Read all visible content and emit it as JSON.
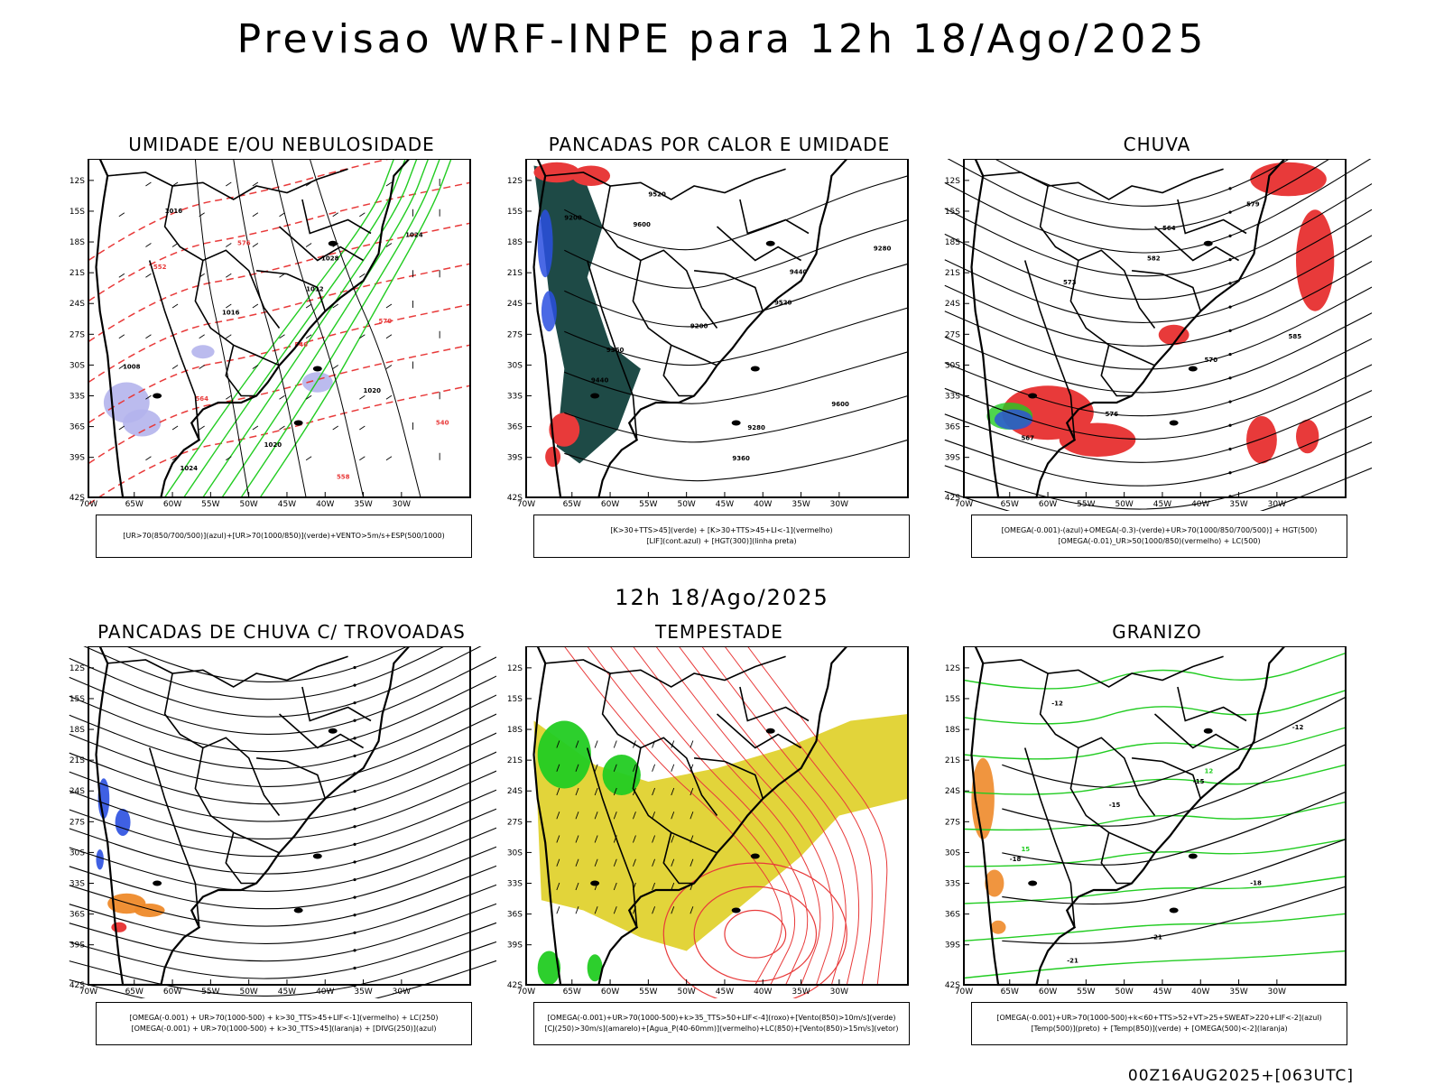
{
  "header": {
    "title": "Previsao WRF-INPE  para 12h 18/Ago/2025",
    "subtitle": "12h 18/Ago/2025",
    "run_info": "00Z16AUG2025+[063UTC]"
  },
  "axes": {
    "lat_labels": [
      "12S",
      "15S",
      "18S",
      "21S",
      "24S",
      "27S",
      "30S",
      "33S",
      "36S",
      "39S",
      "42S"
    ],
    "lon_labels": [
      "70W",
      "65W",
      "60W",
      "55W",
      "50W",
      "45W",
      "40W",
      "35W",
      "30W"
    ]
  },
  "colors": {
    "red": "#e83a3a",
    "green": "#22cc22",
    "blue": "#2a4fe0",
    "lavender": "#b4b4ec",
    "darkteal": "#1e4a46",
    "yellow": "#e2d43a",
    "orange": "#ee8a2a",
    "black": "#000000"
  },
  "panels": [
    {
      "title": "UMIDADE E/OU NEBULOSIDADE",
      "legend": [
        "[UR>70(850/700/500)](azul)+[UR>70(1000/850)](verde)+VENTO>5m/s+ESP(500/1000)"
      ],
      "contour_labels": [
        "1016",
        "1012",
        "1008",
        "1020",
        "1024",
        "1016",
        "1020",
        "1024",
        "1028",
        "576",
        "570",
        "564",
        "558",
        "552",
        "546",
        "540"
      ]
    },
    {
      "title": "PANCADAS POR CALOR E UMIDADE",
      "legend": [
        "[K>30+TTS>45](verde) + [K>30+TTS>45+LI<-1](vermelho)",
        "[LIF](cont.azul) + [HGT(300)](linha preta)"
      ],
      "contour_labels": [
        "9600",
        "9520",
        "9440",
        "9360",
        "9280",
        "9200",
        "9600",
        "9520",
        "9440",
        "9360",
        "9280",
        "9200"
      ]
    },
    {
      "title": "CHUVA",
      "legend": [
        "[OMEGA(-0.001)-(azul)+OMEGA(-0.3)-(verde)+UR>70(1000/850/700/500)] + HGT(500)",
        "[OMEGA(-0.01)_UR>50(1000/850)(vermelho) + LC(500)"
      ],
      "contour_labels": [
        "582",
        "585",
        "576",
        "579",
        "573",
        "570",
        "567",
        "564"
      ]
    },
    {
      "title": "PANCADAS DE CHUVA C/ TROVOADAS",
      "legend": [
        "[OMEGA(-0.001) + UR>70(1000-500) + k>30_TTS>45+LIF<-1](vermelho) + LC(250)",
        "[OMEGA(-0.001) + UR>70(1000-500) + k>30_TTS>45](laranja) + [DIVG(250)](azul)"
      ],
      "contour_labels": []
    },
    {
      "title": "TEMPESTADE",
      "legend": [
        "[OMEGA(-0.001)+UR>70(1000-500)+k>35_TTS>50+LIF<-4](roxo)+[Vento(850)>10m/s](verde)",
        "[CJ(250)>30m/s](amarelo)+[Agua_P(40-60mm)](vermelho)+LC(850)+[Vento(850)>15m/s](vetor)"
      ],
      "contour_labels": []
    },
    {
      "title": "GRANIZO",
      "legend": [
        "[OMEGA(-0.001)+UR>70(1000-500)+k<60+TTS>52+VT>25+SWEAT>220+LIF<-2](azul)",
        "[Temp(500)](preto) + [Temp(850)](verde) + [OMEGA(500)<-2](laranja)"
      ],
      "contour_labels": [
        "-12",
        "-15",
        "-18",
        "-21",
        "-12",
        "-15",
        "-18",
        "-21",
        "12",
        "15"
      ]
    }
  ]
}
